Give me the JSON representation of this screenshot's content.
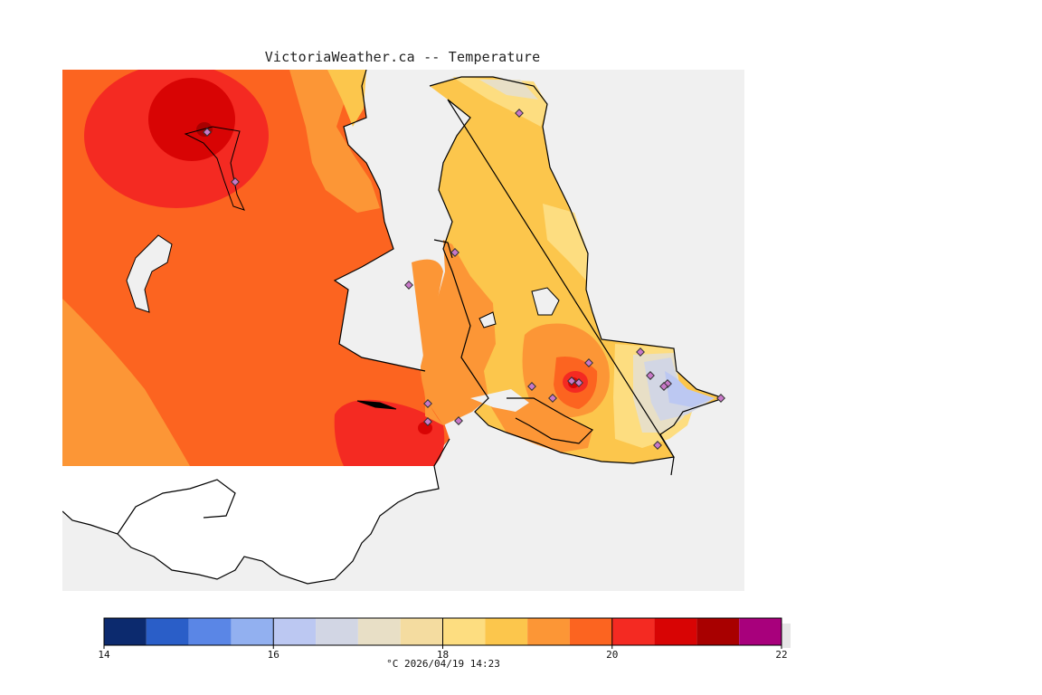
{
  "header": {
    "title": "VictoriaWeather.ca -- Temperature"
  },
  "legend": {
    "unit": "°C",
    "timestamp": "2026/04/19 14:23",
    "caption": "°C  2026/04/19 14:23",
    "min": 14,
    "max": 22,
    "tick_labels": [
      "14",
      "16",
      "18",
      "20",
      "22"
    ],
    "tick_values": [
      14,
      16,
      18,
      20,
      22
    ],
    "bins": [
      {
        "from": 14.0,
        "to": 14.5,
        "color": "#0c2a6e"
      },
      {
        "from": 14.5,
        "to": 15.0,
        "color": "#2a5ec8"
      },
      {
        "from": 15.0,
        "to": 15.5,
        "color": "#5a86e6"
      },
      {
        "from": 15.5,
        "to": 16.0,
        "color": "#92b0f0"
      },
      {
        "from": 16.0,
        "to": 16.5,
        "color": "#bcc8f2"
      },
      {
        "from": 16.5,
        "to": 17.0,
        "color": "#d2d6e4"
      },
      {
        "from": 17.0,
        "to": 17.5,
        "color": "#e8dfc6"
      },
      {
        "from": 17.5,
        "to": 18.0,
        "color": "#f4dca0"
      },
      {
        "from": 18.0,
        "to": 18.5,
        "color": "#fddd80"
      },
      {
        "from": 18.5,
        "to": 19.0,
        "color": "#fcc64c"
      },
      {
        "from": 19.0,
        "to": 19.5,
        "color": "#fc9636"
      },
      {
        "from": 19.5,
        "to": 20.0,
        "color": "#fc6420"
      },
      {
        "from": 20.0,
        "to": 20.5,
        "color": "#f42a22"
      },
      {
        "from": 20.5,
        "to": 21.0,
        "color": "#d80404"
      },
      {
        "from": 21.0,
        "to": 21.5,
        "color": "#a80000"
      },
      {
        "from": 21.5,
        "to": 22.0,
        "color": "#a8007c"
      }
    ]
  },
  "map": {
    "background": "#f0f0f0",
    "land_white": "#ffffff",
    "coastline": "#000000",
    "station_count": 19
  }
}
